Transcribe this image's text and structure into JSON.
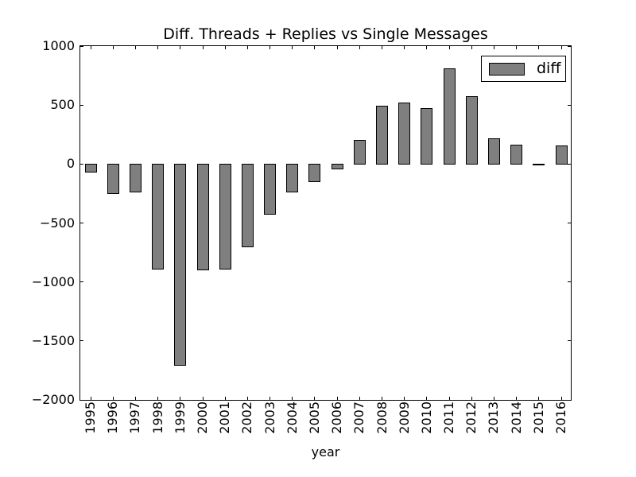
{
  "chart_data": {
    "type": "bar",
    "title": "Diff. Threads + Replies vs Single Messages",
    "xlabel": "year",
    "ylabel": "",
    "legend": {
      "label": "diff",
      "position": "upper right"
    },
    "categories": [
      1995,
      1996,
      1997,
      1998,
      1999,
      2000,
      2001,
      2002,
      2003,
      2004,
      2005,
      2006,
      2007,
      2008,
      2009,
      2010,
      2011,
      2012,
      2013,
      2014,
      2015,
      2016
    ],
    "values": [
      -70,
      -250,
      -235,
      -890,
      -1710,
      -900,
      -890,
      -700,
      -425,
      -240,
      -150,
      -40,
      200,
      490,
      520,
      470,
      810,
      575,
      215,
      160,
      -5,
      155
    ],
    "series": [
      {
        "name": "diff",
        "values": [
          -70,
          -250,
          -235,
          -890,
          -1710,
          -900,
          -890,
          -700,
          -425,
          -240,
          -150,
          -40,
          200,
          490,
          520,
          470,
          810,
          575,
          215,
          160,
          -5,
          155
        ]
      }
    ],
    "ylim": [
      -2000,
      1000
    ],
    "yticks": [
      1000,
      500,
      0,
      -500,
      -1000,
      -1500,
      -2000
    ],
    "grid": false,
    "colors": {
      "bar_fill": "#7f7f7f",
      "bar_edge": "#000000",
      "background": "#ffffff",
      "text": "#000000"
    }
  }
}
